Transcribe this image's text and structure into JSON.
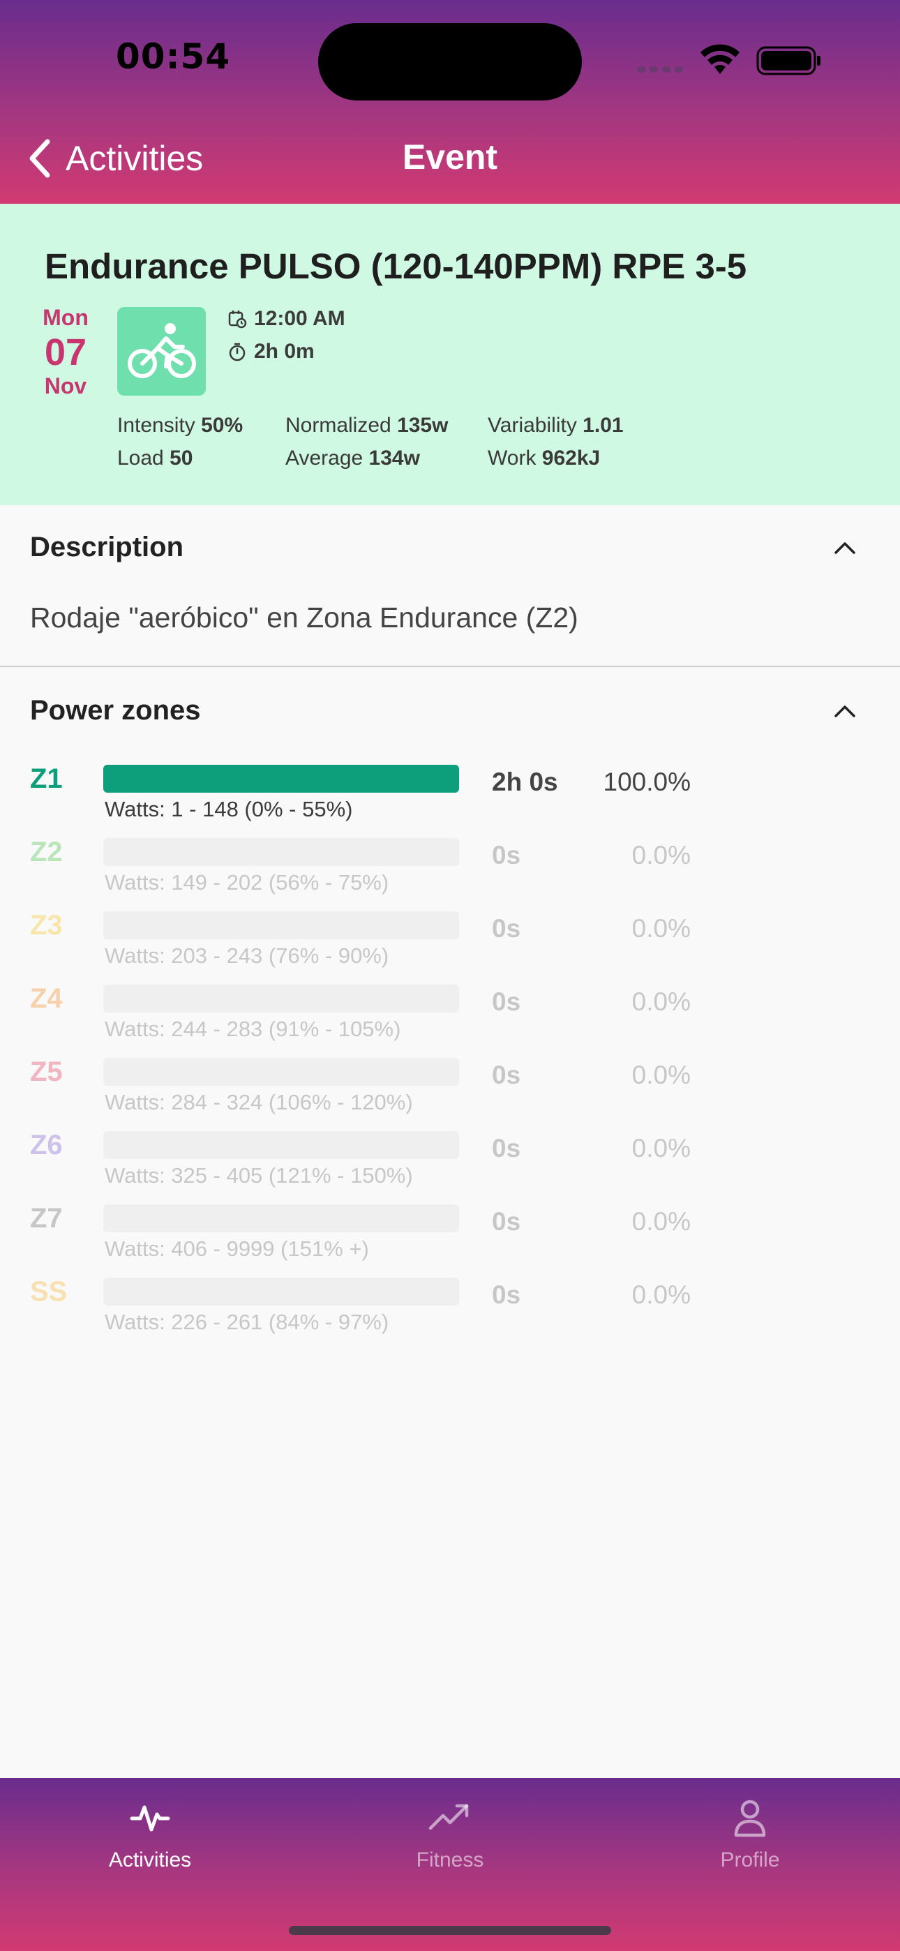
{
  "status_bar": {
    "time": "00:54"
  },
  "nav": {
    "back_label": "Activities",
    "title": "Event"
  },
  "event": {
    "title": "Endurance PULSO (120-140PPM) RPE 3-5",
    "date": {
      "dow": "Mon",
      "day": "07",
      "month": "Nov"
    },
    "activity_icon": "bike-icon",
    "start_time": "12:00 AM",
    "duration": "2h 0m",
    "stats": {
      "intensity_label": "Intensity",
      "intensity_value": "50%",
      "load_label": "Load",
      "load_value": "50",
      "normalized_label": "Normalized",
      "normalized_value": "135w",
      "average_label": "Average",
      "average_value": "134w",
      "variability_label": "Variability",
      "variability_value": "1.01",
      "work_label": "Work",
      "work_value": "962kJ"
    }
  },
  "description": {
    "heading": "Description",
    "text": "Rodaje \"aeróbico\" en Zona Endurance (Z2)"
  },
  "power_zones": {
    "heading": "Power zones",
    "zones": [
      {
        "id": "Z1",
        "watts": "Watts: 1 - 148 (0% - 55%)",
        "time": "2h 0s",
        "percent": "100.0%",
        "fill": 1.0,
        "color": "#0d9e7b"
      },
      {
        "id": "Z2",
        "watts": "Watts: 149 - 202 (56% - 75%)",
        "time": "0s",
        "percent": "0.0%",
        "fill": 0.0,
        "color": "#6ccf6f"
      },
      {
        "id": "Z3",
        "watts": "Watts: 203 - 243 (76% - 90%)",
        "time": "0s",
        "percent": "0.0%",
        "fill": 0.0,
        "color": "#f6cf4c"
      },
      {
        "id": "Z4",
        "watts": "Watts: 244 - 283 (91% - 105%)",
        "time": "0s",
        "percent": "0.0%",
        "fill": 0.0,
        "color": "#f4a24f"
      },
      {
        "id": "Z5",
        "watts": "Watts: 284 - 324 (106% - 120%)",
        "time": "0s",
        "percent": "0.0%",
        "fill": 0.0,
        "color": "#e8657e"
      },
      {
        "id": "Z6",
        "watts": "Watts: 325 - 405 (121% - 150%)",
        "time": "0s",
        "percent": "0.0%",
        "fill": 0.0,
        "color": "#9c80d9"
      },
      {
        "id": "Z7",
        "watts": "Watts: 406 - 9999 (151% +)",
        "time": "0s",
        "percent": "0.0%",
        "fill": 0.0,
        "color": "#8a8a8a"
      },
      {
        "id": "SS",
        "watts": "Watts: 226 - 261 (84% - 97%)",
        "time": "0s",
        "percent": "0.0%",
        "fill": 0.0,
        "color": "#f7c35a"
      }
    ]
  },
  "tabbar": {
    "items": [
      {
        "label": "Activities",
        "icon": "activity-pulse-icon",
        "active": true
      },
      {
        "label": "Fitness",
        "icon": "trend-up-icon",
        "active": false
      },
      {
        "label": "Profile",
        "icon": "person-icon",
        "active": false
      }
    ]
  },
  "colors": {
    "brand_top": "#6a2d8d",
    "brand_bottom": "#d23a72",
    "event_bg": "#cff9e2",
    "date_accent": "#c83670"
  }
}
